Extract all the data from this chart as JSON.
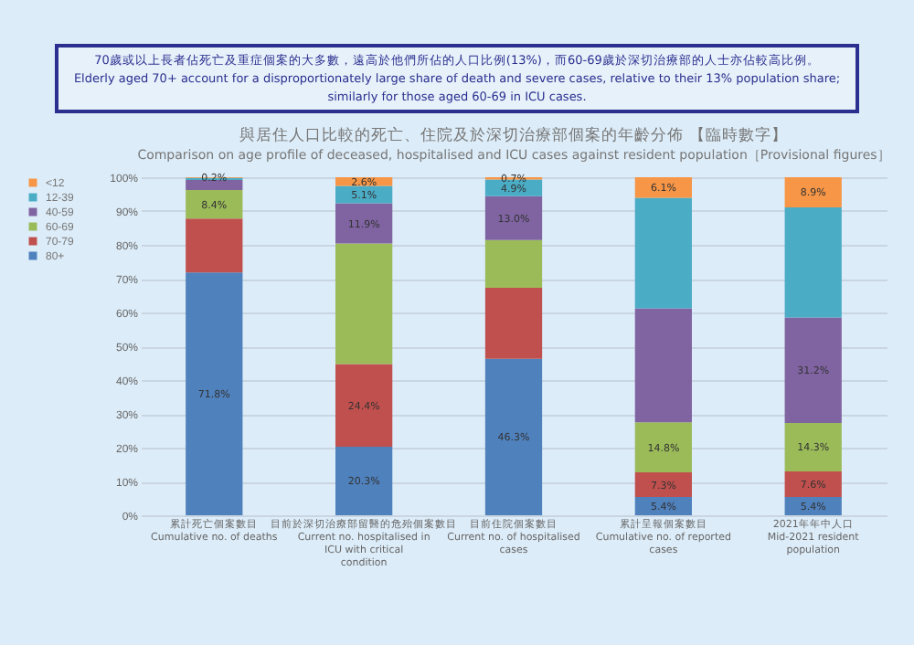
{
  "chart_data": {
    "type": "bar",
    "stacked": true,
    "title": "與居住人口比較的死亡、住院及於深切治療部個案的年齡分佈 【臨時數字】",
    "subtitle": "Comparison on age profile of deceased, hospitalised and ICU cases against resident population［Provisional figures］",
    "annotations": [
      "70歲或以上長者佔死亡及重症個案的大多數，遠高於他們所佔的人口比例(13%)，而60-69歲於深切治療部的人士亦佔較高比例。",
      "Elderly aged 70+ account for a disproportionately large share of death and severe cases, relative to their 13% population share; similarly for those aged 60-69 in ICU cases."
    ],
    "categories": [
      "累計死亡個案數目\nCumulative no. of deaths",
      "目前於深切治療部留醫的危殆個案數目\nCurrent no. hospitalised in ICU with critical\ncondition",
      "目前住院個案數目\nCurrent no. of hospitalised cases",
      "累計呈報個案數目\nCumulative no. of reported cases",
      "2021年年中人口\nMid-2021 resident population"
    ],
    "series": [
      {
        "name": "80+",
        "color": "#4f81bd",
        "values": [
          71.8,
          20.3,
          46.3,
          5.4,
          5.4
        ],
        "value_labels": [
          "71.8%",
          "20.3%",
          "46.3%",
          "5.4%",
          "5.4%"
        ]
      },
      {
        "name": "70-79",
        "color": "#c0504d",
        "values": [
          16.0,
          24.4,
          21.0,
          7.3,
          7.6
        ],
        "value_labels": [
          null,
          "24.4%",
          null,
          "7.3%",
          "7.6%"
        ]
      },
      {
        "name": "60-69",
        "color": "#9bbb59",
        "values": [
          8.4,
          35.7,
          14.1,
          14.8,
          14.3
        ],
        "value_labels": [
          "8.4%",
          null,
          null,
          "14.8%",
          "14.3%"
        ]
      },
      {
        "name": "40-59",
        "color": "#8064a2",
        "values": [
          3.0,
          11.9,
          13.0,
          33.7,
          31.2
        ],
        "value_labels": [
          null,
          "11.9%",
          "13.0%",
          null,
          "31.2%"
        ]
      },
      {
        "name": "12-39",
        "color": "#4bacc6",
        "values": [
          0.6,
          5.1,
          4.9,
          32.7,
          32.6
        ],
        "value_labels": [
          null,
          "5.1%",
          "4.9%",
          null,
          null
        ]
      },
      {
        "name": "<12",
        "color": "#f79646",
        "values": [
          0.2,
          2.6,
          0.7,
          6.1,
          8.9
        ],
        "value_labels": [
          "0.2%",
          "2.6%",
          "0.7%",
          "6.1%",
          "8.9%"
        ]
      }
    ],
    "ylim": [
      0,
      100
    ],
    "yticks": [
      {
        "value": 0,
        "label": "0%"
      },
      {
        "value": 10,
        "label": "10%"
      },
      {
        "value": 20,
        "label": "20%"
      },
      {
        "value": 30,
        "label": "30%"
      },
      {
        "value": 40,
        "label": "40%"
      },
      {
        "value": 50,
        "label": "50%"
      },
      {
        "value": 60,
        "label": "60%"
      },
      {
        "value": 70,
        "label": "70%"
      },
      {
        "value": 80,
        "label": "80%"
      },
      {
        "value": 90,
        "label": "90%"
      },
      {
        "value": 100,
        "label": "100%"
      }
    ],
    "grid": "y",
    "legend": "left"
  }
}
